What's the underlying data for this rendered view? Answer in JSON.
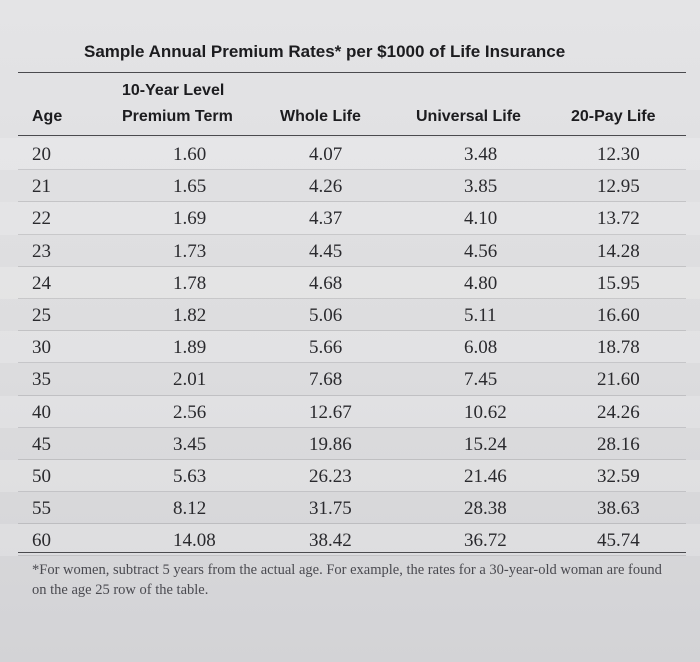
{
  "title": "Sample Annual Premium Rates* per $1000 of Life Insurance",
  "headers": {
    "age": "Age",
    "term_line1": "10-Year Level",
    "term_line2": "Premium Term",
    "whole": "Whole Life",
    "universal": "Universal Life",
    "pay20": "20-Pay Life"
  },
  "rows": [
    {
      "age": "20",
      "term": "1.60",
      "whole": "4.07",
      "universal": "3.48",
      "pay20": "12.30"
    },
    {
      "age": "21",
      "term": "1.65",
      "whole": "4.26",
      "universal": "3.85",
      "pay20": "12.95"
    },
    {
      "age": "22",
      "term": "1.69",
      "whole": "4.37",
      "universal": "4.10",
      "pay20": "13.72"
    },
    {
      "age": "23",
      "term": "1.73",
      "whole": "4.45",
      "universal": "4.56",
      "pay20": "14.28"
    },
    {
      "age": "24",
      "term": "1.78",
      "whole": "4.68",
      "universal": "4.80",
      "pay20": "15.95"
    },
    {
      "age": "25",
      "term": "1.82",
      "whole": "5.06",
      "universal": "5.11",
      "pay20": "16.60"
    },
    {
      "age": "30",
      "term": "1.89",
      "whole": "5.66",
      "universal": "6.08",
      "pay20": "18.78"
    },
    {
      "age": "35",
      "term": "2.01",
      "whole": "7.68",
      "universal": "7.45",
      "pay20": "21.60"
    },
    {
      "age": "40",
      "term": "2.56",
      "whole": "12.67",
      "universal": "10.62",
      "pay20": "24.26"
    },
    {
      "age": "45",
      "term": "3.45",
      "whole": "19.86",
      "universal": "15.24",
      "pay20": "28.16"
    },
    {
      "age": "50",
      "term": "5.63",
      "whole": "26.23",
      "universal": "21.46",
      "pay20": "32.59"
    },
    {
      "age": "55",
      "term": "8.12",
      "whole": "31.75",
      "universal": "28.38",
      "pay20": "38.63"
    },
    {
      "age": "60",
      "term": "14.08",
      "whole": "38.42",
      "universal": "36.72",
      "pay20": "45.74"
    }
  ],
  "footnote": "*For women, subtract 5 years from the actual age. For example, the rates for a 30-year-old woman are found on the age 25 row of the table."
}
